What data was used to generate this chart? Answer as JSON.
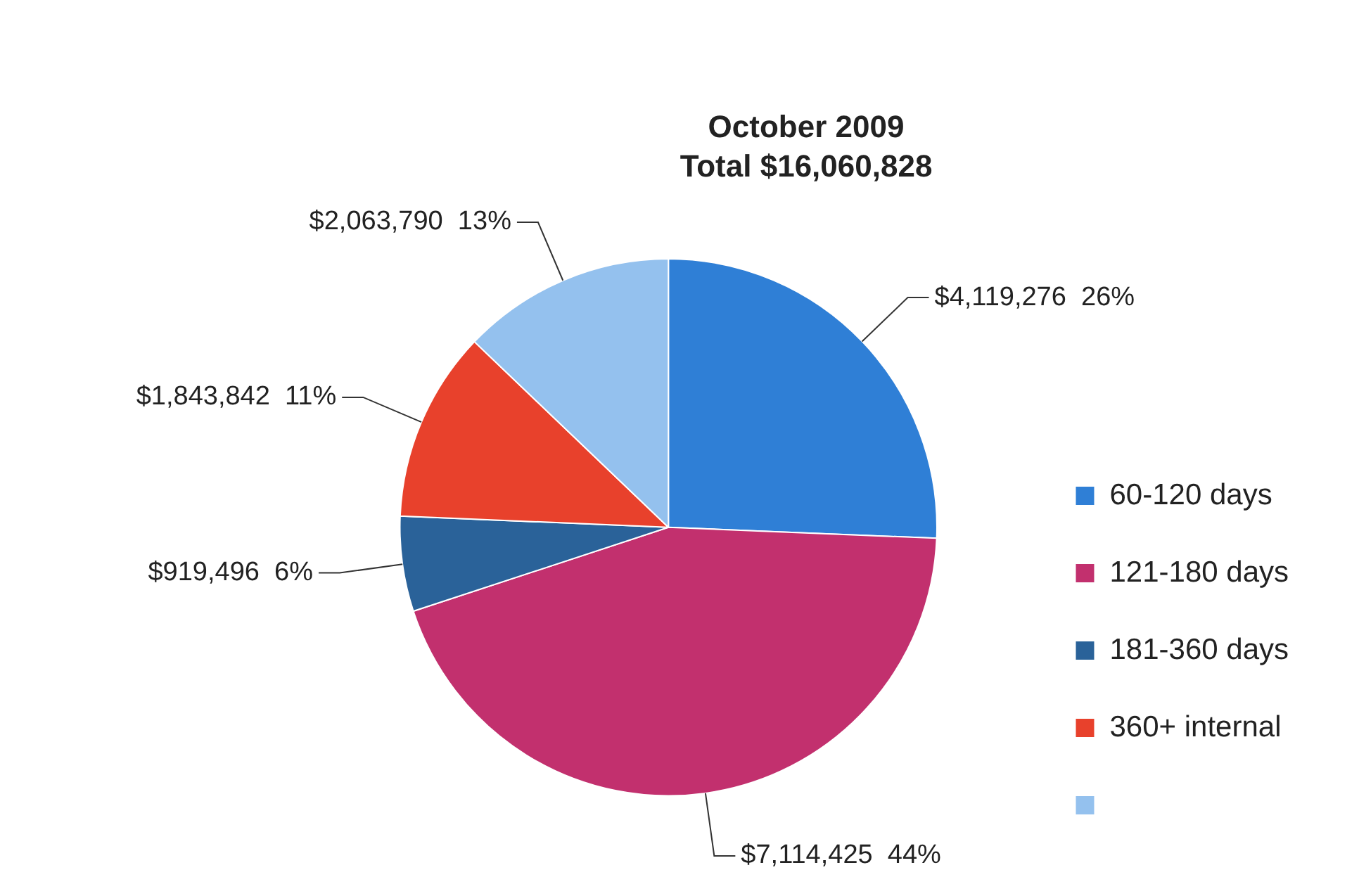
{
  "chart_data": {
    "type": "pie",
    "title": "October 2009",
    "subtitle": "Total $16,060,828",
    "categories": [
      "60-120 days",
      "121-180 days",
      "181-360 days",
      "360+ internal",
      null
    ],
    "values": [
      4119276,
      7114425,
      919496,
      1843842,
      2063790
    ],
    "colors": [
      "#2f7fd6",
      "#c2306e",
      "#2a6299",
      "#e8412c",
      "#94c1ee"
    ],
    "value_labels": [
      "$4,119,276  26%",
      "$7,114,425  44%",
      "$919,496  6%",
      "$1,843,842  11%",
      "$2,063,790  13%"
    ],
    "legend": "right"
  }
}
